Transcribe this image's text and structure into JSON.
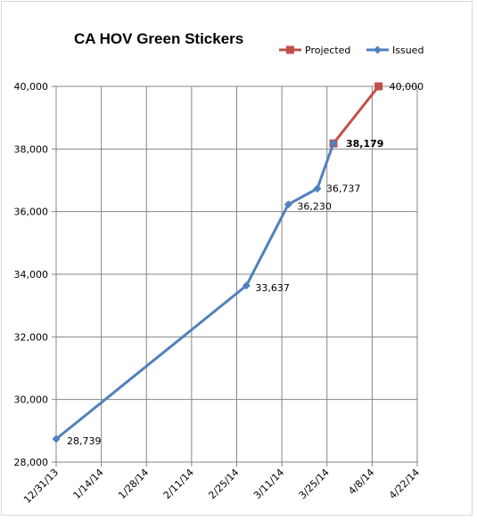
{
  "chart_data": {
    "type": "line",
    "title": "CA HOV Green Stickers",
    "xlabel": "",
    "ylabel": "",
    "x_ticks": [
      "12/31/13",
      "1/14/14",
      "1/28/14",
      "2/11/14",
      "2/25/14",
      "3/11/14",
      "3/25/14",
      "4/8/14",
      "4/22/14"
    ],
    "y_ticks": [
      "28,000",
      "30,000",
      "32,000",
      "34,000",
      "36,000",
      "38,000",
      "40,000"
    ],
    "ylim": [
      28000,
      40000
    ],
    "xlim": [
      "12/31/13",
      "4/22/14"
    ],
    "grid": true,
    "legend_position": "top-right",
    "series": [
      {
        "name": "Projected",
        "color": "#C0504D",
        "marker": "square",
        "points": [
          {
            "x": "3/27/14",
            "y": 38179
          },
          {
            "x": "4/10/14",
            "y": 40000,
            "label": "40,000"
          }
        ]
      },
      {
        "name": "Issued",
        "color": "#4F81BD",
        "marker": "diamond",
        "points": [
          {
            "x": "12/31/13",
            "y": 28739,
            "label": "28,739"
          },
          {
            "x": "2/28/14",
            "y": 33637,
            "label": "33,637"
          },
          {
            "x": "3/13/14",
            "y": 36230,
            "label": "36,230"
          },
          {
            "x": "3/22/14",
            "y": 36737,
            "label": "36,737"
          },
          {
            "x": "3/27/14",
            "y": 38179,
            "label": "38,179"
          }
        ]
      }
    ]
  }
}
